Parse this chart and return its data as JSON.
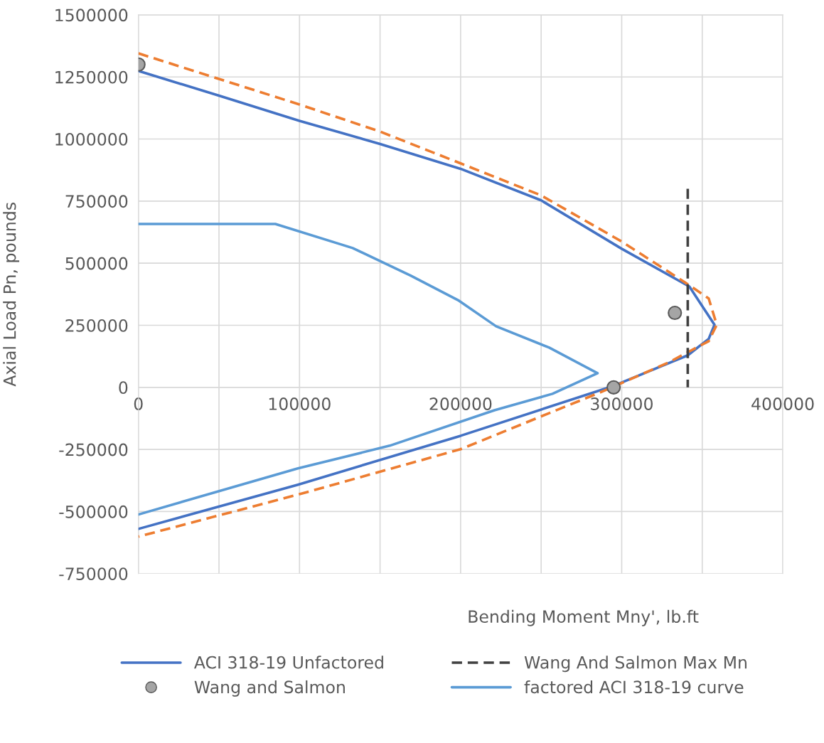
{
  "chart_data": {
    "type": "line",
    "xlabel": "Bending Moment Mny', lb.ft",
    "ylabel": "Axial Load Pn, pounds",
    "xlim": [
      0,
      400000
    ],
    "ylim": [
      -750000,
      1500000
    ],
    "xticks": [
      0,
      {
        "value": 50000,
        "label": null
      },
      100000,
      {
        "value": 150000,
        "label": null
      },
      200000,
      {
        "value": 250000,
        "label": null
      },
      300000,
      {
        "value": 350000,
        "label": null
      },
      400000
    ],
    "yticks": [
      -750000,
      -500000,
      -250000,
      0,
      250000,
      500000,
      750000,
      1000000,
      1250000,
      1500000
    ],
    "grid": true,
    "legend": "bottom",
    "series": [
      {
        "name": "ACI 318-19 Unfactored",
        "color": "#4472c4",
        "line_style": "solid",
        "marker": "none",
        "x": [
          0,
          50000,
          100000,
          150000,
          200000,
          250000,
          300000,
          342000,
          357600,
          354000,
          341000,
          295000,
          200000,
          99000,
          0
        ],
        "values": [
          1274000,
          1175000,
          1073000,
          980000,
          880000,
          753000,
          558000,
          406000,
          252000,
          195000,
          129000,
          6000,
          -195000,
          -392000,
          -570000
        ]
      },
      {
        "color": "#ed7d31",
        "line_style": "dashed",
        "marker": "none",
        "x": [
          0,
          100000,
          150000,
          200000,
          250000,
          300000,
          339000,
          354000,
          359000,
          354000,
          329000,
          289000,
          200000,
          99000,
          0
        ],
        "values": [
          1345000,
          1139000,
          1030000,
          902000,
          773000,
          587000,
          424000,
          358000,
          252000,
          186000,
          100000,
          -14000,
          -249000,
          -432000,
          -601000
        ]
      },
      {
        "name": "Wang and Salmon",
        "type": "scatter",
        "color": "#a5a5a5",
        "marker": "circle",
        "x": [
          0,
          333000,
          295000
        ],
        "values": [
          1300000,
          300000,
          0
        ]
      },
      {
        "name": "Wang And Salmon Max Mn",
        "color": "#404040",
        "line_style": "dashed",
        "marker": "none",
        "x": [
          341000,
          341000
        ],
        "values": [
          800000,
          0
        ]
      },
      {
        "name": "factored ACI 318-19 curve",
        "color": "#5b9bd5",
        "line_style": "solid",
        "marker": "none",
        "x": [
          0,
          85000,
          133000,
          169000,
          199000,
          222000,
          255000,
          285000,
          257000,
          221000,
          156000,
          99000,
          0
        ],
        "values": [
          658000,
          658000,
          561000,
          450000,
          349000,
          246000,
          160000,
          57000,
          -26000,
          -92000,
          -235000,
          -326000,
          -512000
        ]
      }
    ]
  }
}
